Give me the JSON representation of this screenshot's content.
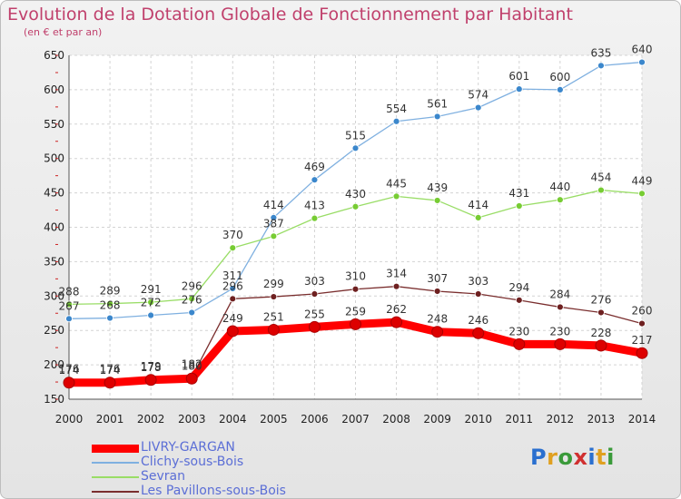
{
  "title": "Evolution de la Dotation Globale de Fonctionnement par Habitant",
  "subtitle": "(en € et par an)",
  "logo": "Proxiti",
  "chart_data": {
    "type": "line",
    "title": "Evolution de la Dotation Globale de Fonctionnement par Habitant",
    "subtitle": "(en € et par an)",
    "xlabel": "",
    "ylabel": "",
    "ylim": [
      150,
      650
    ],
    "yticks": [
      150,
      200,
      250,
      300,
      350,
      400,
      450,
      500,
      550,
      600,
      650
    ],
    "grid": true,
    "categories": [
      "2000",
      "2001",
      "2002",
      "2003",
      "2004",
      "2005",
      "2006",
      "2007",
      "2008",
      "2009",
      "2010",
      "2011",
      "2012",
      "2013",
      "2014"
    ],
    "series": [
      {
        "name": "LIVRY-GARGAN",
        "color": "#ff0000",
        "marker": "#dd0000",
        "values": [
          174,
          174,
          178,
          180,
          249,
          251,
          255,
          259,
          262,
          248,
          246,
          230,
          230,
          228,
          217
        ]
      },
      {
        "name": "Clichy-sous-Bois",
        "color": "#7fb0e0",
        "marker": "#3b87cc",
        "values": [
          267,
          268,
          272,
          276,
          311,
          414,
          469,
          515,
          554,
          561,
          574,
          601,
          600,
          635,
          640
        ]
      },
      {
        "name": "Sevran",
        "color": "#99dd66",
        "marker": "#77cc33",
        "values": [
          288,
          289,
          291,
          296,
          370,
          387,
          413,
          430,
          445,
          439,
          414,
          431,
          440,
          454,
          449
        ]
      },
      {
        "name": "Les Pavillons-sous-Bois",
        "color": "#7a2e2e",
        "marker": "#6e2020",
        "values": [
          176,
          176,
          179,
          182,
          296,
          299,
          303,
          310,
          314,
          307,
          303,
          294,
          284,
          276,
          260
        ]
      }
    ],
    "legend_position": "bottom-left"
  }
}
